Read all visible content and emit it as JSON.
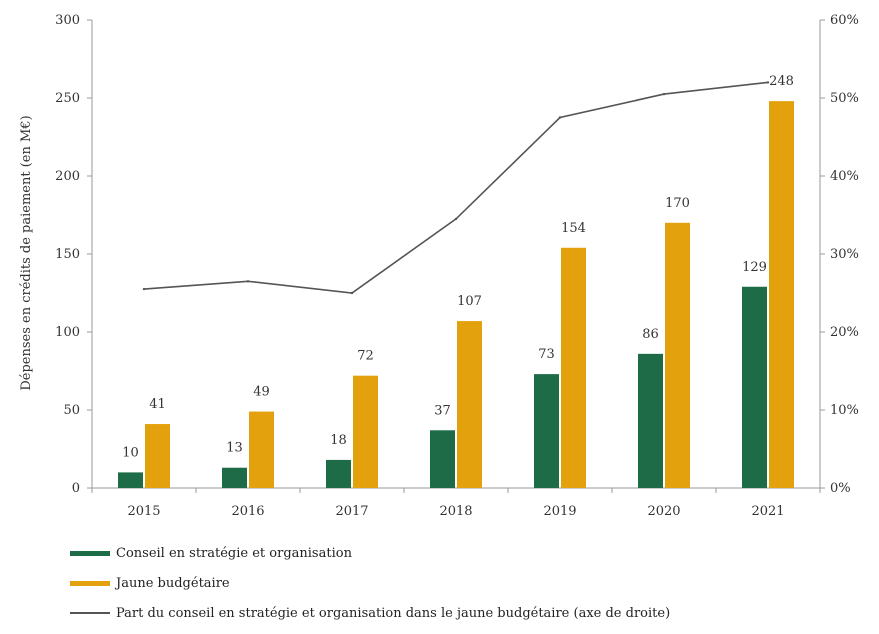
{
  "colors": {
    "conseil": "#1e6b48",
    "jaune": "#e3a20d",
    "line": "#555555",
    "axis": "#9a9a9a"
  },
  "chart_data": {
    "type": "bar",
    "categories": [
      "2015",
      "2016",
      "2017",
      "2018",
      "2019",
      "2020",
      "2021"
    ],
    "series": [
      {
        "name": "Conseil en stratégie et organisation",
        "type": "bar",
        "axis": "left",
        "values": [
          10,
          13,
          18,
          37,
          73,
          86,
          129
        ]
      },
      {
        "name": "Jaune budgétaire",
        "type": "bar",
        "axis": "left",
        "values": [
          41,
          49,
          72,
          107,
          154,
          170,
          248
        ]
      },
      {
        "name": "Part du conseil en stratégie et organisation dans le jaune budgétaire (axe de droite)",
        "type": "line",
        "axis": "right",
        "values": [
          25.5,
          26.5,
          25,
          34.5,
          47.5,
          50.5,
          52
        ]
      }
    ],
    "data_labels": {
      "conseil": [
        "10",
        "13",
        "18",
        "37",
        "73",
        "86",
        "129"
      ],
      "jaune": [
        "41",
        "49",
        "72",
        "107",
        "154",
        "170",
        "248"
      ]
    },
    "ylabel": "Dépenses en crédits de paiement (en M€)",
    "ylim": [
      0,
      300
    ],
    "yticks": [
      "0",
      "50",
      "100",
      "150",
      "200",
      "250",
      "300"
    ],
    "y2lim": [
      0,
      60
    ],
    "y2ticks": [
      "0%",
      "10%",
      "20%",
      "30%",
      "40%",
      "50%",
      "60%"
    ],
    "grid": false,
    "legend_position": "bottom-left"
  },
  "legend": {
    "items": [
      "Conseil en stratégie et organisation",
      "Jaune budgétaire",
      "Part du conseil en stratégie et organisation dans le jaune budgétaire (axe de droite)"
    ]
  }
}
